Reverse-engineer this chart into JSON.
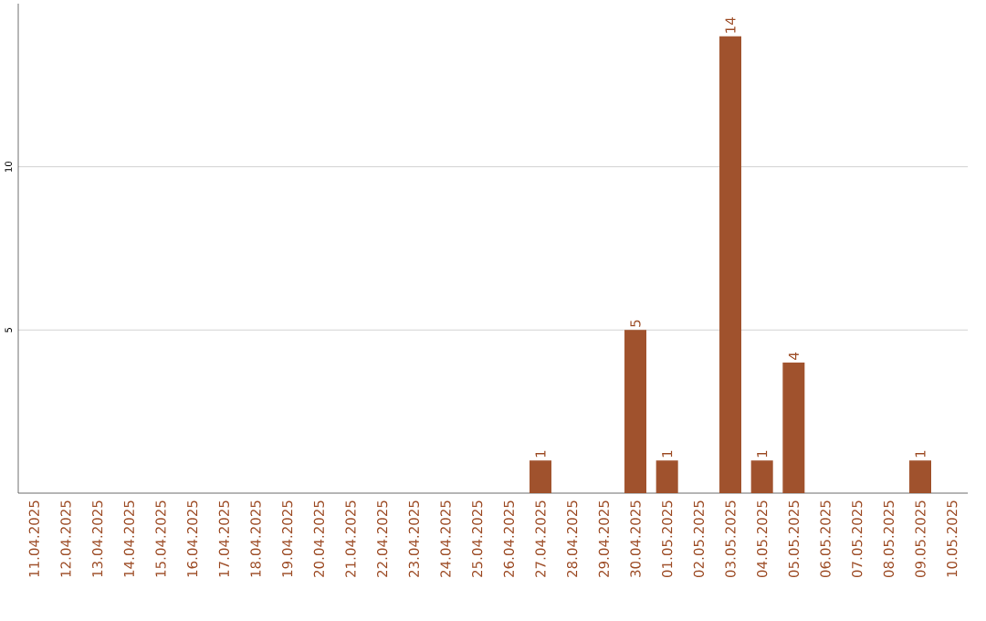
{
  "chart_data": {
    "type": "bar",
    "categories": [
      "11.04.2025",
      "12.04.2025",
      "13.04.2025",
      "14.04.2025",
      "15.04.2025",
      "16.04.2025",
      "17.04.2025",
      "18.04.2025",
      "19.04.2025",
      "20.04.2025",
      "21.04.2025",
      "22.04.2025",
      "23.04.2025",
      "24.04.2025",
      "25.04.2025",
      "26.04.2025",
      "27.04.2025",
      "28.04.2025",
      "29.04.2025",
      "30.04.2025",
      "01.05.2025",
      "02.05.2025",
      "03.05.2025",
      "04.05.2025",
      "05.05.2025",
      "06.05.2025",
      "07.05.2025",
      "08.05.2025",
      "09.05.2025",
      "10.05.2025"
    ],
    "values": [
      0,
      0,
      0,
      0,
      0,
      0,
      0,
      0,
      0,
      0,
      0,
      0,
      0,
      0,
      0,
      0,
      1,
      0,
      0,
      5,
      1,
      0,
      14,
      1,
      4,
      0,
      0,
      0,
      1,
      0
    ],
    "value_labels": [
      null,
      null,
      null,
      null,
      null,
      null,
      null,
      null,
      null,
      null,
      null,
      null,
      null,
      null,
      null,
      null,
      "1",
      null,
      null,
      "5",
      "1",
      null,
      "14",
      "1",
      "4",
      null,
      null,
      null,
      "1",
      null
    ],
    "color": "#a0522d",
    "ylim": [
      0,
      15
    ],
    "yticks": [
      5,
      10
    ],
    "grid": "y"
  }
}
